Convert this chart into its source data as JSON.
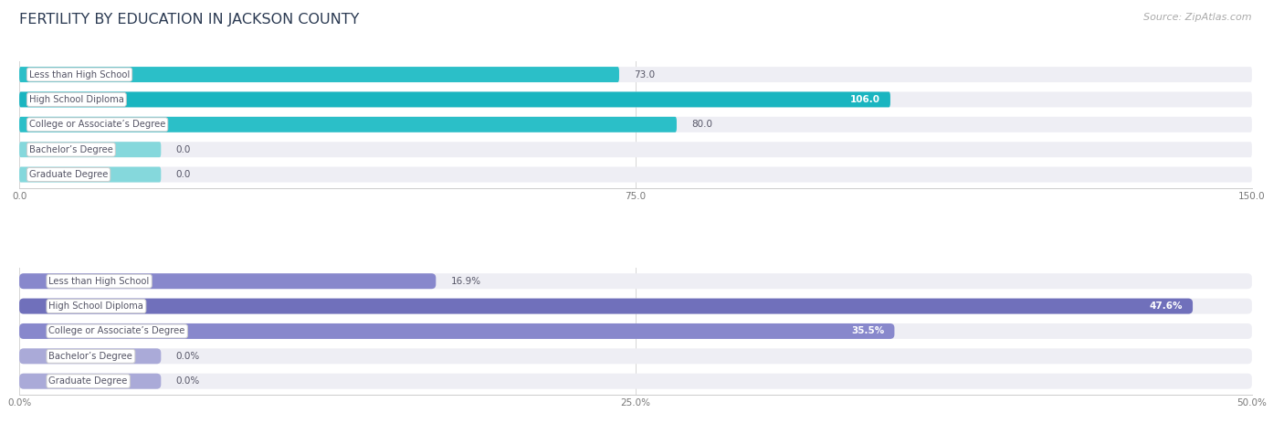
{
  "title": "FERTILITY BY EDUCATION IN JACKSON COUNTY",
  "source": "Source: ZipAtlas.com",
  "top_chart": {
    "categories": [
      "Less than High School",
      "High School Diploma",
      "College or Associate’s Degree",
      "Bachelor’s Degree",
      "Graduate Degree"
    ],
    "values": [
      73.0,
      106.0,
      80.0,
      0.0,
      0.0
    ],
    "labels": [
      "73.0",
      "106.0",
      "80.0",
      "0.0",
      "0.0"
    ],
    "label_inside": [
      false,
      true,
      false,
      false,
      false
    ],
    "xlim": [
      0,
      150
    ],
    "xticks": [
      0.0,
      75.0,
      150.0
    ],
    "xtick_labels": [
      "0.0",
      "75.0",
      "150.0"
    ],
    "bar_color": "#2BBFC8",
    "bar_color_hs": "#1AB5C0",
    "bar_color_zero": "#85D8DC",
    "bar_bg": "#EEEEF4"
  },
  "bottom_chart": {
    "categories": [
      "Less than High School",
      "High School Diploma",
      "College or Associate’s Degree",
      "Bachelor’s Degree",
      "Graduate Degree"
    ],
    "values": [
      16.9,
      47.6,
      35.5,
      0.0,
      0.0
    ],
    "labels": [
      "16.9%",
      "47.6%",
      "35.5%",
      "0.0%",
      "0.0%"
    ],
    "label_inside": [
      false,
      true,
      true,
      false,
      false
    ],
    "xlim": [
      0,
      50
    ],
    "xticks": [
      0.0,
      25.0,
      50.0
    ],
    "xtick_labels": [
      "0.0%",
      "25.0%",
      "50.0%"
    ],
    "bar_color": "#8888CC",
    "bar_color_hs": "#7070BB",
    "bar_color_zero": "#AAAAD8",
    "bar_bg": "#EEEEF4"
  },
  "title_color": "#2B3A52",
  "title_fontsize": 11.5,
  "source_color": "#AAAAAA",
  "source_fontsize": 8,
  "label_fontsize": 7.5,
  "category_fontsize": 7.2,
  "tick_fontsize": 7.5,
  "bar_height": 0.62,
  "background_color": "#FFFFFF",
  "cat_label_color": "#555566",
  "cat_label_bg": "#FFFFFF",
  "cat_label_border": "#CCCCCC"
}
